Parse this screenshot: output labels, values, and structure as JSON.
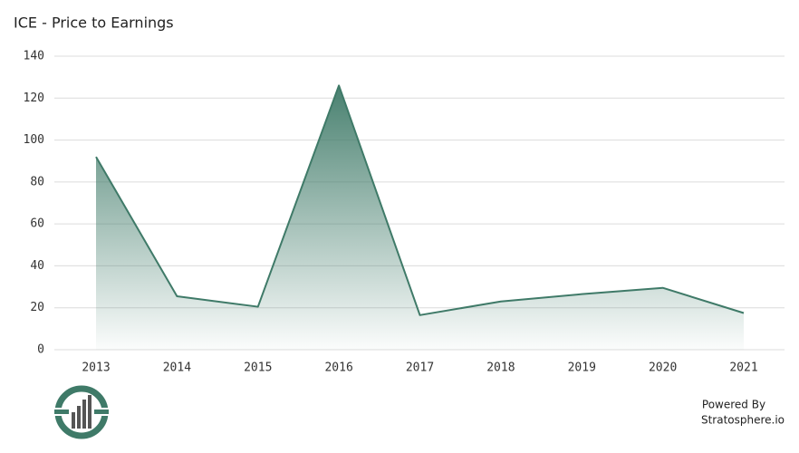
{
  "chart_data": {
    "type": "area",
    "title": "ICE - Price to Earnings",
    "categories": [
      "2013",
      "2014",
      "2015",
      "2016",
      "2017",
      "2018",
      "2019",
      "2020",
      "2021"
    ],
    "values": [
      92,
      25.5,
      20.5,
      126,
      16.5,
      23,
      26.5,
      29.5,
      17.5
    ],
    "color": "#3f7a68",
    "ylim": [
      0,
      140
    ],
    "yticks": [
      0,
      20,
      40,
      60,
      80,
      100,
      120,
      140
    ],
    "grid": true,
    "credit": [
      "Powered By",
      "Stratosphere.io"
    ]
  }
}
